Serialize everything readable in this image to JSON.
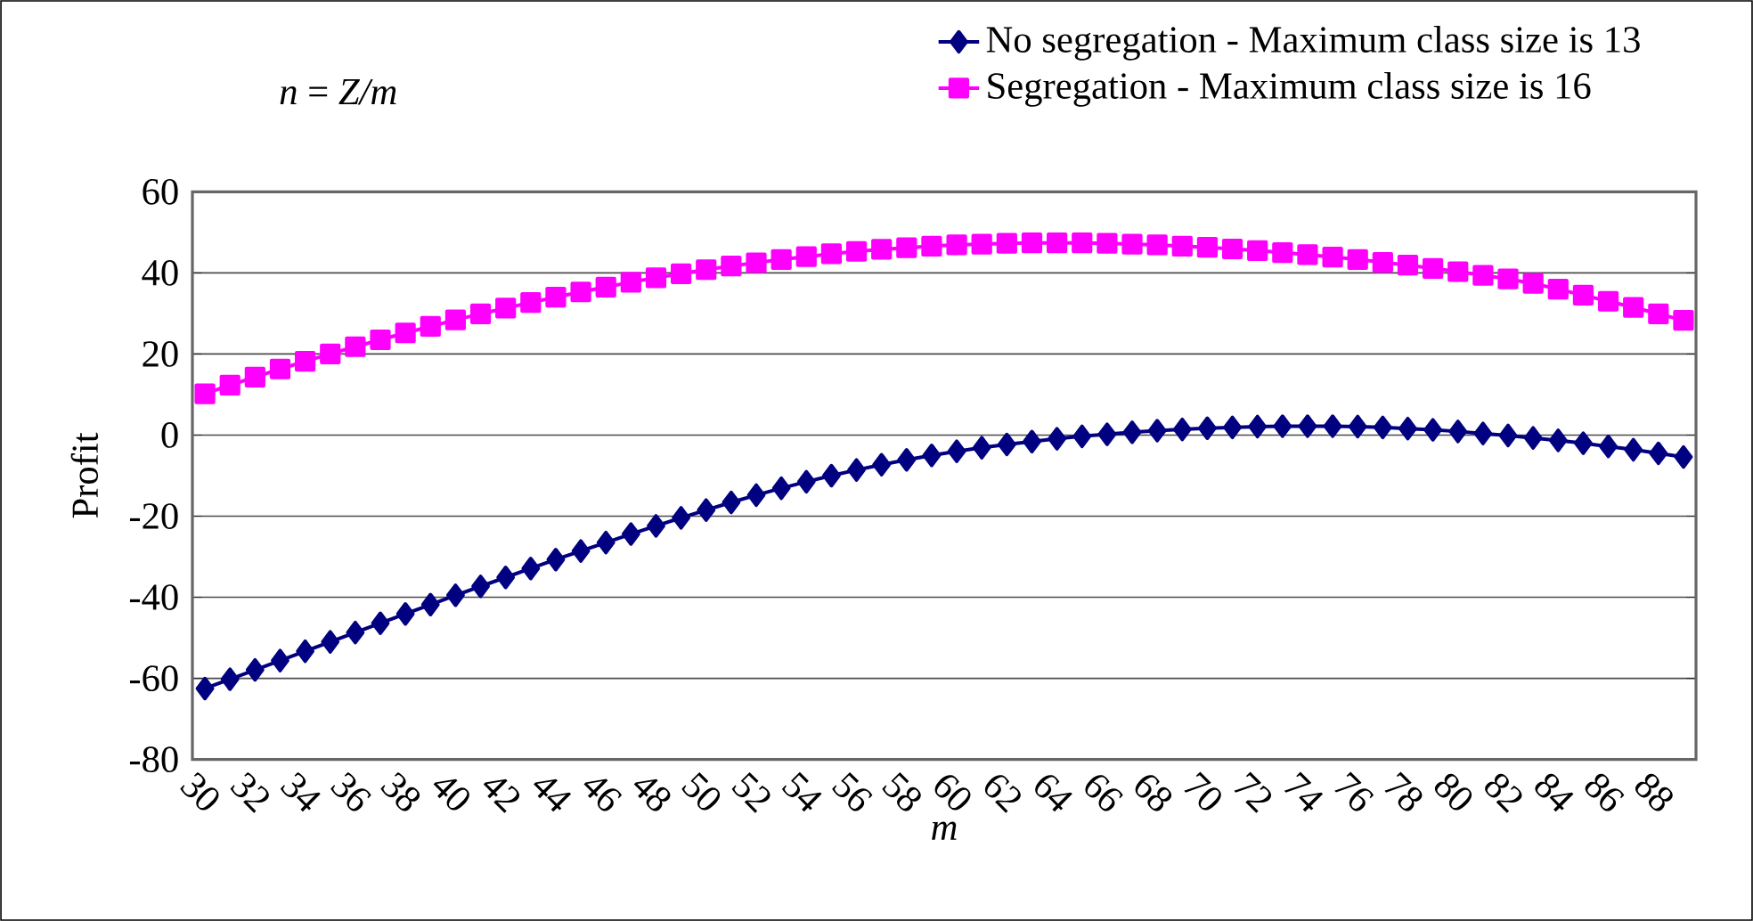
{
  "chart_data": {
    "type": "line",
    "xlabel": "m",
    "ylabel": "Profit",
    "annotations": [
      "*n* = *Z/m*"
    ],
    "categories": [
      "30",
      null,
      "32",
      null,
      "34",
      null,
      "36",
      null,
      "38",
      null,
      "40",
      null,
      "42",
      null,
      "44",
      null,
      "46",
      null,
      "48",
      null,
      "50",
      null,
      "52",
      null,
      "54",
      null,
      "56",
      null,
      "58",
      null,
      "60",
      null,
      "62",
      null,
      "64",
      null,
      "66",
      null,
      "68",
      null,
      "70",
      null,
      "72",
      null,
      "74",
      null,
      "76",
      null,
      "78",
      null,
      "80",
      null,
      "82",
      null,
      "84",
      null,
      "86",
      null,
      "88",
      null
    ],
    "series": [
      {
        "name": "No segregation - Maximum class size is 13",
        "color": "#000080",
        "marker": "diamond",
        "values": [
          -62.5,
          -60.2,
          -57.9,
          -55.6,
          -53.3,
          -51.0,
          -48.7,
          -46.4,
          -44.1,
          -41.8,
          -39.5,
          -37.3,
          -35.1,
          -32.9,
          -30.7,
          -28.6,
          -26.5,
          -24.4,
          -22.4,
          -20.4,
          -18.5,
          -16.6,
          -14.8,
          -13.1,
          -11.5,
          -10.0,
          -8.6,
          -7.3,
          -6.1,
          -5.0,
          -4.0,
          -3.1,
          -2.3,
          -1.6,
          -0.9,
          -0.3,
          0.2,
          0.7,
          1.1,
          1.4,
          1.7,
          1.9,
          2.1,
          2.2,
          2.2,
          2.2,
          2.1,
          1.9,
          1.6,
          1.3,
          0.9,
          0.4,
          -0.1,
          -0.7,
          -1.3,
          -2.0,
          -2.8,
          -3.6,
          -4.5,
          -5.4
        ]
      },
      {
        "name": "Segregation - Maximum class size is 16",
        "color": "#ff00ff",
        "marker": "square",
        "values": [
          10.2,
          12.3,
          14.3,
          16.3,
          18.2,
          20.0,
          21.8,
          23.5,
          25.2,
          26.8,
          28.4,
          29.9,
          31.3,
          32.7,
          34.0,
          35.3,
          36.5,
          37.7,
          38.8,
          39.8,
          40.8,
          41.7,
          42.5,
          43.3,
          44.0,
          44.7,
          45.3,
          45.8,
          46.2,
          46.6,
          46.9,
          47.1,
          47.3,
          47.4,
          47.4,
          47.4,
          47.3,
          47.1,
          46.9,
          46.6,
          46.3,
          45.9,
          45.5,
          45.0,
          44.5,
          43.9,
          43.3,
          42.6,
          41.9,
          41.1,
          40.3,
          39.4,
          38.5,
          37.4,
          36.0,
          34.5,
          33.0,
          31.5,
          29.9,
          28.3
        ]
      }
    ],
    "ylim": [
      -80,
      60
    ],
    "yticks": [
      -80,
      -60,
      -40,
      -20,
      0,
      20,
      40,
      60
    ],
    "grid": "y",
    "legend": "top"
  }
}
